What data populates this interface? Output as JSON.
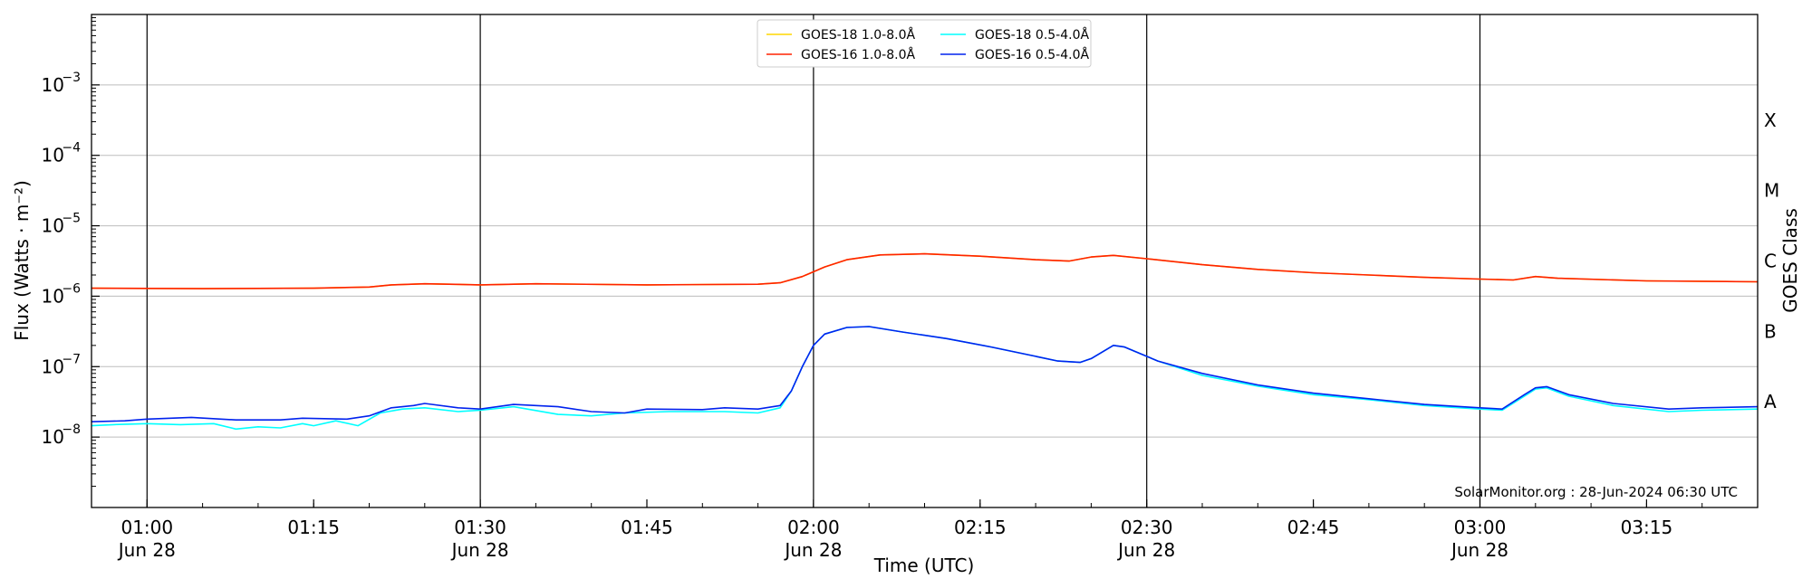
{
  "chart_data": {
    "type": "line",
    "title": "",
    "xlabel": "Time (UTC)",
    "ylabel": "Flux (Watts · m⁻²)",
    "right_ylabel": "GOES Class",
    "credit": "SolarMonitor.org : 28-Jun-2024 06:30 UTC",
    "y_scale": "log",
    "ylim": [
      1e-09,
      0.01
    ],
    "xlim": [
      "00:55",
      "03:25"
    ],
    "grid": "horizontal at decades; vertical lines at 30-minute marks",
    "legend_placement": "top-center",
    "x_ticks": [
      {
        "time": "01:00",
        "label": "01:00",
        "sublabel": "Jun 28"
      },
      {
        "time": "01:15",
        "label": "01:15",
        "sublabel": ""
      },
      {
        "time": "01:30",
        "label": "01:30",
        "sublabel": "Jun 28"
      },
      {
        "time": "01:45",
        "label": "01:45",
        "sublabel": ""
      },
      {
        "time": "02:00",
        "label": "02:00",
        "sublabel": "Jun 28"
      },
      {
        "time": "02:15",
        "label": "02:15",
        "sublabel": ""
      },
      {
        "time": "02:30",
        "label": "02:30",
        "sublabel": "Jun 28"
      },
      {
        "time": "02:45",
        "label": "02:45",
        "sublabel": ""
      },
      {
        "time": "03:00",
        "label": "03:00",
        "sublabel": "Jun 28"
      },
      {
        "time": "03:15",
        "label": "03:15",
        "sublabel": ""
      }
    ],
    "vlines": [
      "01:00",
      "01:30",
      "02:00",
      "02:30",
      "03:00"
    ],
    "y_ticks": [
      {
        "exp": -8,
        "label": "10"
      },
      {
        "exp": -7,
        "label": "10"
      },
      {
        "exp": -6,
        "label": "10"
      },
      {
        "exp": -5,
        "label": "10"
      },
      {
        "exp": -4,
        "label": "10"
      },
      {
        "exp": -3,
        "label": "10"
      }
    ],
    "goes_classes": [
      {
        "label": "A",
        "exp": -7.5
      },
      {
        "label": "B",
        "exp": -6.5
      },
      {
        "label": "C",
        "exp": -5.5
      },
      {
        "label": "M",
        "exp": -4.5
      },
      {
        "label": "X",
        "exp": -3.5
      }
    ],
    "legend": [
      {
        "label": "GOES-18 1.0-8.0Å",
        "color": "#ffd700"
      },
      {
        "label": "GOES-18 0.5-4.0Å",
        "color": "#00ffff"
      },
      {
        "label": "GOES-16 1.0-8.0Å",
        "color": "#ff2200"
      },
      {
        "label": "GOES-16 0.5-4.0Å",
        "color": "#0022ee"
      }
    ],
    "series": [
      {
        "name": "GOES-18 1.0-8.0Å",
        "color": "#ffd700",
        "points": [
          [
            "00:55",
            1.3e-06
          ],
          [
            "01:05",
            1.28e-06
          ],
          [
            "01:15",
            1.3e-06
          ],
          [
            "01:20",
            1.35e-06
          ],
          [
            "01:22",
            1.45e-06
          ],
          [
            "01:25",
            1.5e-06
          ],
          [
            "01:30",
            1.45e-06
          ],
          [
            "01:35",
            1.5e-06
          ],
          [
            "01:45",
            1.45e-06
          ],
          [
            "01:55",
            1.48e-06
          ],
          [
            "01:57",
            1.55e-06
          ],
          [
            "01:59",
            1.9e-06
          ],
          [
            "02:01",
            2.6e-06
          ],
          [
            "02:03",
            3.3e-06
          ],
          [
            "02:06",
            3.85e-06
          ],
          [
            "02:10",
            4e-06
          ],
          [
            "02:15",
            3.7e-06
          ],
          [
            "02:20",
            3.3e-06
          ],
          [
            "02:23",
            3.15e-06
          ],
          [
            "02:25",
            3.6e-06
          ],
          [
            "02:27",
            3.8e-06
          ],
          [
            "02:30",
            3.4e-06
          ],
          [
            "02:35",
            2.8e-06
          ],
          [
            "02:40",
            2.4e-06
          ],
          [
            "02:45",
            2.15e-06
          ],
          [
            "02:50",
            2e-06
          ],
          [
            "02:55",
            1.85e-06
          ],
          [
            "03:00",
            1.75e-06
          ],
          [
            "03:03",
            1.7e-06
          ],
          [
            "03:05",
            1.9e-06
          ],
          [
            "03:07",
            1.8e-06
          ],
          [
            "03:15",
            1.65e-06
          ],
          [
            "03:25",
            1.6e-06
          ]
        ]
      },
      {
        "name": "GOES-16 1.0-8.0Å",
        "color": "#ff2200",
        "points": [
          [
            "00:55",
            1.3e-06
          ],
          [
            "01:05",
            1.28e-06
          ],
          [
            "01:15",
            1.3e-06
          ],
          [
            "01:20",
            1.35e-06
          ],
          [
            "01:22",
            1.45e-06
          ],
          [
            "01:25",
            1.5e-06
          ],
          [
            "01:30",
            1.45e-06
          ],
          [
            "01:35",
            1.5e-06
          ],
          [
            "01:45",
            1.45e-06
          ],
          [
            "01:55",
            1.48e-06
          ],
          [
            "01:57",
            1.55e-06
          ],
          [
            "01:59",
            1.9e-06
          ],
          [
            "02:01",
            2.6e-06
          ],
          [
            "02:03",
            3.3e-06
          ],
          [
            "02:06",
            3.85e-06
          ],
          [
            "02:10",
            4e-06
          ],
          [
            "02:15",
            3.7e-06
          ],
          [
            "02:20",
            3.3e-06
          ],
          [
            "02:23",
            3.15e-06
          ],
          [
            "02:25",
            3.6e-06
          ],
          [
            "02:27",
            3.8e-06
          ],
          [
            "02:30",
            3.4e-06
          ],
          [
            "02:35",
            2.8e-06
          ],
          [
            "02:40",
            2.4e-06
          ],
          [
            "02:45",
            2.15e-06
          ],
          [
            "02:50",
            2e-06
          ],
          [
            "02:55",
            1.85e-06
          ],
          [
            "03:00",
            1.75e-06
          ],
          [
            "03:03",
            1.7e-06
          ],
          [
            "03:05",
            1.9e-06
          ],
          [
            "03:07",
            1.8e-06
          ],
          [
            "03:15",
            1.65e-06
          ],
          [
            "03:25",
            1.6e-06
          ]
        ]
      },
      {
        "name": "GOES-18 0.5-4.0Å",
        "color": "#00ffff",
        "points": [
          [
            "00:55",
            1.45e-08
          ],
          [
            "00:57",
            1.5e-08
          ],
          [
            "01:00",
            1.55e-08
          ],
          [
            "01:03",
            1.5e-08
          ],
          [
            "01:06",
            1.55e-08
          ],
          [
            "01:08",
            1.3e-08
          ],
          [
            "01:10",
            1.4e-08
          ],
          [
            "01:12",
            1.35e-08
          ],
          [
            "01:14",
            1.55e-08
          ],
          [
            "01:15",
            1.45e-08
          ],
          [
            "01:17",
            1.7e-08
          ],
          [
            "01:19",
            1.45e-08
          ],
          [
            "01:21",
            2.2e-08
          ],
          [
            "01:23",
            2.5e-08
          ],
          [
            "01:25",
            2.6e-08
          ],
          [
            "01:28",
            2.3e-08
          ],
          [
            "01:30",
            2.4e-08
          ],
          [
            "01:33",
            2.7e-08
          ],
          [
            "01:37",
            2.1e-08
          ],
          [
            "01:40",
            2e-08
          ],
          [
            "01:43",
            2.2e-08
          ],
          [
            "01:47",
            2.3e-08
          ],
          [
            "01:52",
            2.3e-08
          ],
          [
            "01:55",
            2.2e-08
          ],
          [
            "01:57",
            2.6e-08
          ],
          [
            "01:58",
            4.5e-08
          ],
          [
            "01:59",
            1e-07
          ],
          [
            "02:00",
            2e-07
          ],
          [
            "02:01",
            2.9e-07
          ],
          [
            "02:03",
            3.6e-07
          ],
          [
            "02:05",
            3.7e-07
          ],
          [
            "02:08",
            3.1e-07
          ],
          [
            "02:12",
            2.5e-07
          ],
          [
            "02:16",
            1.9e-07
          ],
          [
            "02:20",
            1.4e-07
          ],
          [
            "02:22",
            1.2e-07
          ],
          [
            "02:24",
            1.15e-07
          ],
          [
            "02:25",
            1.3e-07
          ],
          [
            "02:27",
            2e-07
          ],
          [
            "02:28",
            1.9e-07
          ],
          [
            "02:31",
            1.2e-07
          ],
          [
            "02:35",
            7.5e-08
          ],
          [
            "02:40",
            5.3e-08
          ],
          [
            "02:45",
            4e-08
          ],
          [
            "02:50",
            3.4e-08
          ],
          [
            "02:55",
            2.8e-08
          ],
          [
            "03:00",
            2.5e-08
          ],
          [
            "03:02",
            2.4e-08
          ],
          [
            "03:04",
            3.8e-08
          ],
          [
            "03:05",
            4.8e-08
          ],
          [
            "03:06",
            5e-08
          ],
          [
            "03:08",
            3.8e-08
          ],
          [
            "03:12",
            2.8e-08
          ],
          [
            "03:17",
            2.3e-08
          ],
          [
            "03:20",
            2.4e-08
          ],
          [
            "03:25",
            2.5e-08
          ]
        ]
      },
      {
        "name": "GOES-16 0.5-4.0Å",
        "color": "#0022ee",
        "points": [
          [
            "00:55",
            1.65e-08
          ],
          [
            "00:58",
            1.7e-08
          ],
          [
            "01:00",
            1.8e-08
          ],
          [
            "01:04",
            1.9e-08
          ],
          [
            "01:08",
            1.75e-08
          ],
          [
            "01:12",
            1.75e-08
          ],
          [
            "01:14",
            1.85e-08
          ],
          [
            "01:18",
            1.8e-08
          ],
          [
            "01:20",
            2e-08
          ],
          [
            "01:22",
            2.6e-08
          ],
          [
            "01:24",
            2.8e-08
          ],
          [
            "01:25",
            3e-08
          ],
          [
            "01:28",
            2.6e-08
          ],
          [
            "01:30",
            2.5e-08
          ],
          [
            "01:33",
            2.9e-08
          ],
          [
            "01:37",
            2.7e-08
          ],
          [
            "01:40",
            2.3e-08
          ],
          [
            "01:43",
            2.2e-08
          ],
          [
            "01:45",
            2.5e-08
          ],
          [
            "01:50",
            2.45e-08
          ],
          [
            "01:52",
            2.6e-08
          ],
          [
            "01:55",
            2.5e-08
          ],
          [
            "01:57",
            2.8e-08
          ],
          [
            "01:58",
            4.5e-08
          ],
          [
            "01:59",
            1e-07
          ],
          [
            "02:00",
            2e-07
          ],
          [
            "02:01",
            2.9e-07
          ],
          [
            "02:03",
            3.6e-07
          ],
          [
            "02:05",
            3.7e-07
          ],
          [
            "02:08",
            3.1e-07
          ],
          [
            "02:12",
            2.5e-07
          ],
          [
            "02:16",
            1.9e-07
          ],
          [
            "02:20",
            1.4e-07
          ],
          [
            "02:22",
            1.2e-07
          ],
          [
            "02:24",
            1.15e-07
          ],
          [
            "02:25",
            1.3e-07
          ],
          [
            "02:27",
            2e-07
          ],
          [
            "02:28",
            1.9e-07
          ],
          [
            "02:31",
            1.2e-07
          ],
          [
            "02:35",
            8e-08
          ],
          [
            "02:40",
            5.5e-08
          ],
          [
            "02:45",
            4.2e-08
          ],
          [
            "02:50",
            3.5e-08
          ],
          [
            "02:55",
            2.9e-08
          ],
          [
            "03:00",
            2.6e-08
          ],
          [
            "03:02",
            2.5e-08
          ],
          [
            "03:04",
            4e-08
          ],
          [
            "03:05",
            5e-08
          ],
          [
            "03:06",
            5.2e-08
          ],
          [
            "03:08",
            4e-08
          ],
          [
            "03:12",
            3e-08
          ],
          [
            "03:17",
            2.5e-08
          ],
          [
            "03:20",
            2.6e-08
          ],
          [
            "03:25",
            2.7e-08
          ]
        ]
      }
    ]
  }
}
